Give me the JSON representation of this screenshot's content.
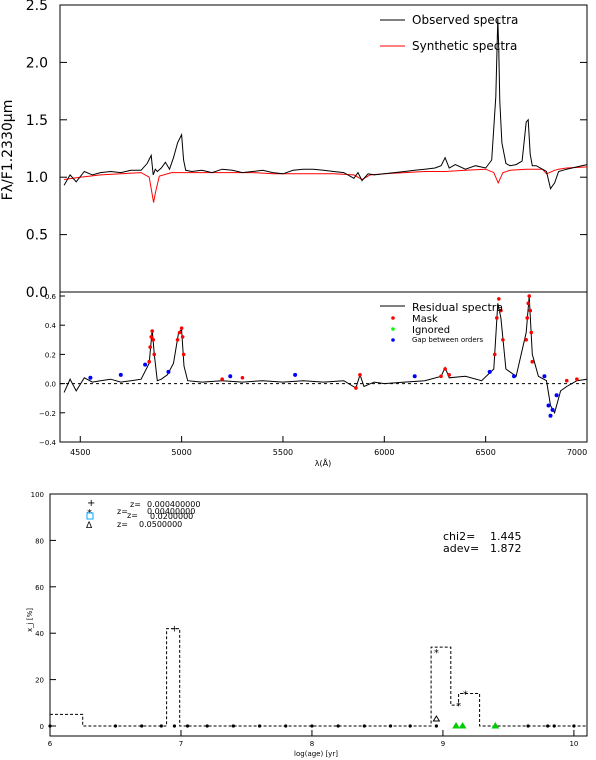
{
  "chart_data": [
    {
      "type": "line",
      "xlim": [
        4400,
        7000
      ],
      "ylim": [
        0.0,
        2.5
      ],
      "yticks": [
        0.0,
        0.5,
        1.0,
        1.5,
        2.0,
        2.5
      ],
      "ytick_labels": [
        "0.0",
        "0.5",
        "1.0",
        "1.5",
        "2.0",
        "2.5"
      ],
      "ylabel": "Fλ/F1.2330µm",
      "legend_placement": "top-right",
      "series": [
        {
          "name": "Observed spectra",
          "color": "#000000",
          "x": [
            4420,
            4450,
            4480,
            4520,
            4560,
            4600,
            4650,
            4700,
            4750,
            4800,
            4830,
            4850,
            4860,
            4870,
            4880,
            4900,
            4920,
            4940,
            4960,
            4980,
            5000,
            5010,
            5020,
            5050,
            5100,
            5150,
            5200,
            5250,
            5300,
            5350,
            5400,
            5450,
            5500,
            5550,
            5600,
            5650,
            5700,
            5750,
            5800,
            5850,
            5870,
            5890,
            5920,
            5950,
            6000,
            6050,
            6100,
            6150,
            6200,
            6250,
            6280,
            6300,
            6320,
            6350,
            6400,
            6450,
            6500,
            6530,
            6550,
            6560,
            6565,
            6570,
            6580,
            6600,
            6620,
            6650,
            6680,
            6700,
            6710,
            6720,
            6730,
            6750,
            6780,
            6800,
            6820,
            6840,
            6860,
            6900,
            6950,
            7000
          ],
          "y": [
            0.93,
            1.02,
            0.96,
            1.05,
            1.02,
            1.04,
            1.05,
            1.04,
            1.06,
            1.06,
            1.12,
            1.19,
            1.02,
            1.07,
            1.05,
            1.08,
            1.13,
            1.07,
            1.17,
            1.3,
            1.37,
            1.15,
            1.06,
            1.05,
            1.06,
            1.04,
            1.07,
            1.06,
            1.04,
            1.05,
            1.06,
            1.04,
            1.03,
            1.06,
            1.07,
            1.07,
            1.06,
            1.05,
            1.04,
            0.99,
            1.04,
            0.97,
            1.03,
            1.02,
            1.03,
            1.04,
            1.05,
            1.06,
            1.07,
            1.08,
            1.1,
            1.17,
            1.08,
            1.11,
            1.07,
            1.1,
            1.08,
            1.15,
            1.7,
            2.38,
            2.1,
            1.66,
            1.3,
            1.12,
            1.1,
            1.11,
            1.14,
            1.48,
            1.5,
            1.2,
            1.1,
            1.1,
            1.07,
            1.05,
            0.9,
            0.95,
            1.05,
            1.07,
            1.09,
            1.11
          ]
        },
        {
          "name": "Synthetic spectra",
          "color": "#ff0000",
          "x": [
            4420,
            4500,
            4600,
            4700,
            4800,
            4840,
            4855,
            4862,
            4870,
            4890,
            4950,
            5050,
            5150,
            5250,
            5350,
            5450,
            5550,
            5650,
            5750,
            5850,
            5890,
            5930,
            6000,
            6100,
            6200,
            6300,
            6400,
            6500,
            6540,
            6562,
            6585,
            6620,
            6700,
            6780,
            6800,
            6840,
            6860,
            6900,
            7000
          ],
          "y": [
            0.98,
            1.0,
            1.02,
            1.03,
            1.04,
            1.0,
            0.85,
            0.78,
            0.86,
            1.01,
            1.04,
            1.04,
            1.04,
            1.04,
            1.04,
            1.03,
            1.03,
            1.03,
            1.03,
            1.02,
            0.98,
            1.02,
            1.03,
            1.04,
            1.05,
            1.05,
            1.06,
            1.07,
            1.04,
            0.95,
            1.04,
            1.06,
            1.07,
            1.07,
            1.03,
            1.06,
            1.07,
            1.08,
            1.09
          ]
        }
      ]
    },
    {
      "type": "scatter",
      "xlim": [
        4400,
        7000
      ],
      "ylim": [
        -0.4,
        0.6
      ],
      "yticks": [
        -0.4,
        -0.2,
        0.0,
        0.2,
        0.4,
        0.6
      ],
      "ytick_labels": [
        "−0.4",
        "−0.2",
        "0.0",
        "0.2",
        "0.4",
        "0.6"
      ],
      "xticks": [
        4500,
        5000,
        5500,
        6000,
        6500,
        7000
      ],
      "xtick_labels": [
        "4500",
        "5000",
        "5500",
        "6000",
        "6500",
        "7000"
      ],
      "xlabel": "λ(Å)",
      "legend_placement": "top-right",
      "series": [
        {
          "name": "Residual spectra",
          "color": "#000000",
          "x": [
            4420,
            4450,
            4480,
            4520,
            4560,
            4600,
            4650,
            4700,
            4750,
            4800,
            4840,
            4855,
            4865,
            4880,
            4900,
            4930,
            4960,
            4985,
            5000,
            5012,
            5030,
            5100,
            5200,
            5300,
            5400,
            5500,
            5600,
            5700,
            5800,
            5860,
            5880,
            5900,
            5950,
            6000,
            6100,
            6200,
            6280,
            6300,
            6320,
            6400,
            6480,
            6540,
            6560,
            6575,
            6600,
            6650,
            6700,
            6715,
            6730,
            6760,
            6800,
            6820,
            6840,
            6870,
            6900,
            6950,
            7000
          ],
          "y": [
            -0.06,
            0.03,
            -0.05,
            0.04,
            0.01,
            0.02,
            0.03,
            0.01,
            0.02,
            0.03,
            0.14,
            0.37,
            0.2,
            0.02,
            0.03,
            0.06,
            0.14,
            0.35,
            0.37,
            0.12,
            0.02,
            0.01,
            0.02,
            0.01,
            0.02,
            0.01,
            0.02,
            0.01,
            0.02,
            -0.03,
            0.06,
            -0.02,
            0.01,
            0.0,
            0.01,
            0.02,
            0.05,
            0.11,
            0.04,
            0.05,
            0.02,
            0.1,
            0.55,
            0.45,
            0.1,
            0.05,
            0.35,
            0.6,
            0.2,
            0.05,
            0.02,
            -0.15,
            -0.2,
            -0.05,
            -0.02,
            0.02,
            0.03
          ]
        },
        {
          "name": "Mask",
          "color": "#ff0000",
          "x": [
            4840,
            4845,
            4850,
            4855,
            4860,
            4865,
            4980,
            4990,
            5000,
            5005,
            5010,
            5200,
            5300,
            5860,
            5880,
            6280,
            6300,
            6320,
            6545,
            6555,
            6565,
            6575,
            6585,
            6700,
            6705,
            6710,
            6715,
            6720,
            6725,
            6730,
            6900,
            6950
          ],
          "y": [
            0.15,
            0.25,
            0.32,
            0.36,
            0.3,
            0.2,
            0.3,
            0.35,
            0.38,
            0.32,
            0.2,
            0.03,
            0.04,
            -0.03,
            0.06,
            0.05,
            0.1,
            0.06,
            0.2,
            0.45,
            0.58,
            0.5,
            0.3,
            0.3,
            0.45,
            0.55,
            0.6,
            0.5,
            0.35,
            0.15,
            0.02,
            0.03
          ]
        },
        {
          "name": "Ignored",
          "color": "#00ff00",
          "x": [],
          "y": []
        },
        {
          "name": "Gap between orders",
          "color": "#0000ff",
          "x": [
            4550,
            4700,
            4820,
            4935,
            5240,
            5560,
            6150,
            6520,
            6640,
            6790,
            6810,
            6820,
            6830,
            6850
          ],
          "y": [
            0.04,
            0.06,
            0.13,
            0.08,
            0.05,
            0.06,
            0.05,
            0.08,
            0.05,
            0.05,
            -0.15,
            -0.22,
            -0.18,
            -0.08
          ]
        }
      ]
    },
    {
      "type": "line",
      "xlim": [
        6,
        10.1
      ],
      "ylim": [
        0,
        100
      ],
      "xticks": [
        6,
        7,
        8,
        9,
        10
      ],
      "xtick_labels": [
        "6",
        "7",
        "8",
        "9",
        "10"
      ],
      "yticks": [
        0,
        20,
        40,
        60,
        80,
        100
      ],
      "ytick_labels": [
        "0",
        "20",
        "40",
        "60",
        "80",
        "100"
      ],
      "xlabel": "log(age) [yr]",
      "ylabel": "x_j [%]",
      "legend_placement": "top-left",
      "legend_lines": [
        {
          "prefix": "z=",
          "value": "0.000400000"
        },
        {
          "prefix": "z=",
          "value": "0.00400000"
        },
        {
          "prefix": "z=",
          "value": "0.0200000"
        },
        {
          "prefix": "z=",
          "value": "0.0500000"
        }
      ],
      "legend_colors": [
        "#000000",
        "#ff0000",
        "#00aaff",
        "#000000"
      ],
      "stats": {
        "chi2_label": "chi2=",
        "chi2": "1.445",
        "adev_label": "adev=",
        "adev": "1.872"
      },
      "step": {
        "x": [
          6.0,
          6.25,
          6.25,
          6.89,
          6.89,
          6.99,
          6.99,
          8.91,
          8.91,
          9.06,
          9.06,
          9.12,
          9.12,
          9.28,
          9.28,
          10.1
        ],
        "y": [
          5,
          5,
          0,
          0,
          42,
          42,
          0,
          0,
          34,
          34,
          9,
          9,
          14,
          14,
          0,
          0
        ]
      },
      "points": {
        "ages": [
          6.0,
          6.5,
          6.7,
          6.85,
          6.95,
          7.05,
          7.2,
          7.4,
          7.6,
          7.8,
          8.0,
          8.2,
          8.4,
          8.6,
          8.75,
          8.95,
          9.1,
          9.15,
          9.4,
          9.65,
          9.8,
          9.85,
          10.0
        ],
        "zero_y": 0,
        "highlights": [
          {
            "x": 6.95,
            "y": 42,
            "color": "#00cc00",
            "marker": "cross"
          },
          {
            "x": 8.95,
            "y": 32,
            "color": "#ff0000",
            "marker": "star"
          },
          {
            "x": 9.12,
            "y": 9,
            "color": "#ff0000",
            "marker": "star"
          },
          {
            "x": 9.17,
            "y": 14,
            "color": "#ff0000",
            "marker": "star"
          },
          {
            "x": 8.95,
            "y": 3,
            "color": "#000000",
            "marker": "triangle"
          },
          {
            "x": 9.1,
            "y": 0,
            "color": "#00cc00",
            "marker": "triangle"
          },
          {
            "x": 9.15,
            "y": 0,
            "color": "#00cc00",
            "marker": "triangle"
          },
          {
            "x": 9.4,
            "y": 0,
            "color": "#00cc00",
            "marker": "triangle"
          }
        ]
      }
    }
  ]
}
